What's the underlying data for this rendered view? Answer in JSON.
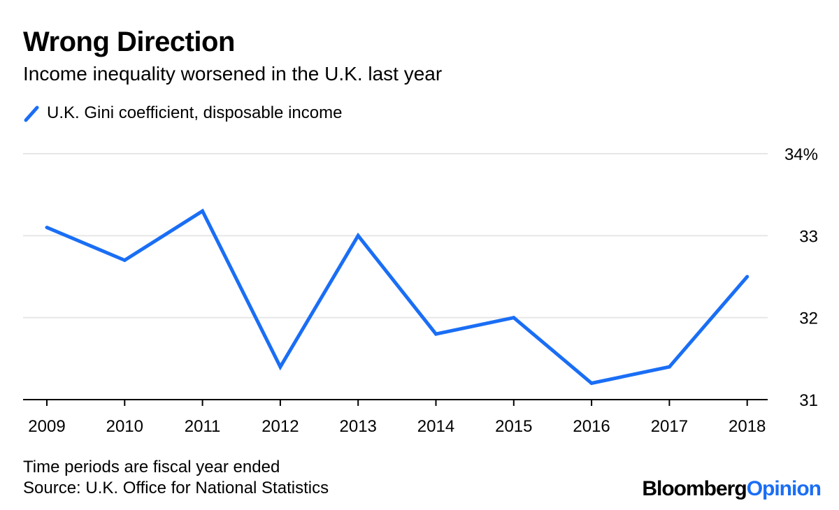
{
  "chart_data": {
    "type": "line",
    "title": "Wrong Direction",
    "subtitle": "Income inequality worsened in the U.K. last year",
    "categories": [
      "2009",
      "2010",
      "2011",
      "2012",
      "2013",
      "2014",
      "2015",
      "2016",
      "2017",
      "2018"
    ],
    "series": [
      {
        "name": "U.K. Gini coefficient, disposable income",
        "color": "#1a6ef5",
        "values": [
          33.1,
          32.7,
          33.3,
          31.4,
          33.0,
          31.8,
          32.0,
          31.2,
          31.4,
          32.5
        ]
      }
    ],
    "y_ticks": [
      {
        "value": 31,
        "label": "31"
      },
      {
        "value": 32,
        "label": "32"
      },
      {
        "value": 33,
        "label": "33"
      },
      {
        "value": 34,
        "label": "34%"
      }
    ],
    "ylim": [
      31,
      34
    ],
    "y_axis_side": "right",
    "grid": true,
    "legend_position": "top-left",
    "xlabel": "",
    "ylabel": ""
  },
  "footer": {
    "note": "Time periods are fiscal year ended",
    "source": "Source: U.K. Office for National Statistics"
  },
  "brand": {
    "part1": "Bloomberg",
    "part2": "Opinion"
  }
}
